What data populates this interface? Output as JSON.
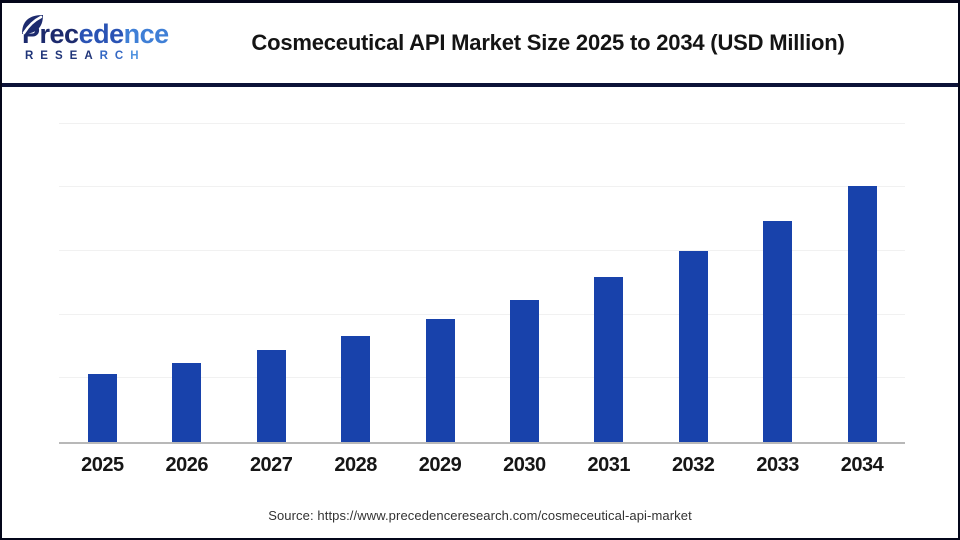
{
  "header": {
    "logo": {
      "name_part1": "Prec",
      "name_part2": "ede",
      "name_part3": "nce",
      "sub_part1": "RESEA",
      "sub_part2": "RC",
      "sub_part3": "H"
    },
    "title": "Cosmeceutical API Market Size 2025 to 2034 (USD Million)"
  },
  "footer": {
    "source": "Source: https://www.precedenceresearch.com/cosmeceutical-api-market"
  },
  "colors": {
    "bar": "#1842ab",
    "header_divider": "#0c1238",
    "outer_border": "#04061a",
    "axis_line": "#b8b8b8",
    "gridline": "#f1f1f1",
    "logo_navy": "#1c2a6d",
    "logo_mid_blue": "#2a53b4",
    "logo_light_blue": "#3f7fd6",
    "title_text": "#141414",
    "tick_text": "#161616",
    "source_text": "#333333"
  },
  "chart_data": {
    "type": "bar",
    "title": "Cosmeceutical API Market Size 2025 to 2034 (USD Million)",
    "unit": "USD Million",
    "categories": [
      "2025",
      "2026",
      "2027",
      "2028",
      "2029",
      "2030",
      "2031",
      "2032",
      "2033",
      "2034"
    ],
    "values": [
      537,
      622,
      720,
      834,
      966,
      1118,
      1295,
      1500,
      1736,
      2010
    ],
    "xlabel": "",
    "ylabel": "",
    "ylim": [
      0,
      2765
    ],
    "gridline_step": 500,
    "grid": "horizontal",
    "y_axis_ticks": "none",
    "data_labels": "none",
    "legend": "none",
    "bar_color": "#1842ab"
  }
}
